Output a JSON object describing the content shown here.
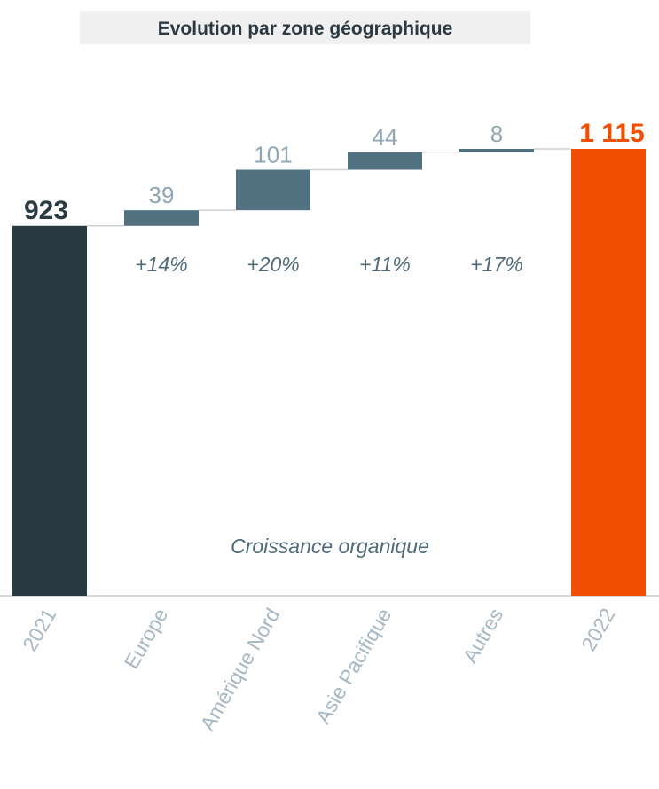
{
  "chart_data": {
    "type": "waterfall",
    "title": "Evolution par zone géographique",
    "annotation": "Croissance organique",
    "categories": [
      "2021",
      "Europe",
      "Amérique Nord",
      "Asie Pacifique",
      "Autres",
      "2022"
    ],
    "values": [
      923,
      39,
      101,
      44,
      8,
      1115
    ],
    "value_labels": [
      "923",
      "39",
      "101",
      "44",
      "8",
      "1 115"
    ],
    "measures": [
      "total",
      "relative",
      "relative",
      "relative",
      "relative",
      "total"
    ],
    "colors": [
      "#2b3a42",
      "#517180",
      "#517180",
      "#517180",
      "#517180",
      "#f04e00"
    ],
    "growth_labels": [
      null,
      "+14%",
      "+20%",
      "+11%",
      "+17%",
      null
    ]
  }
}
